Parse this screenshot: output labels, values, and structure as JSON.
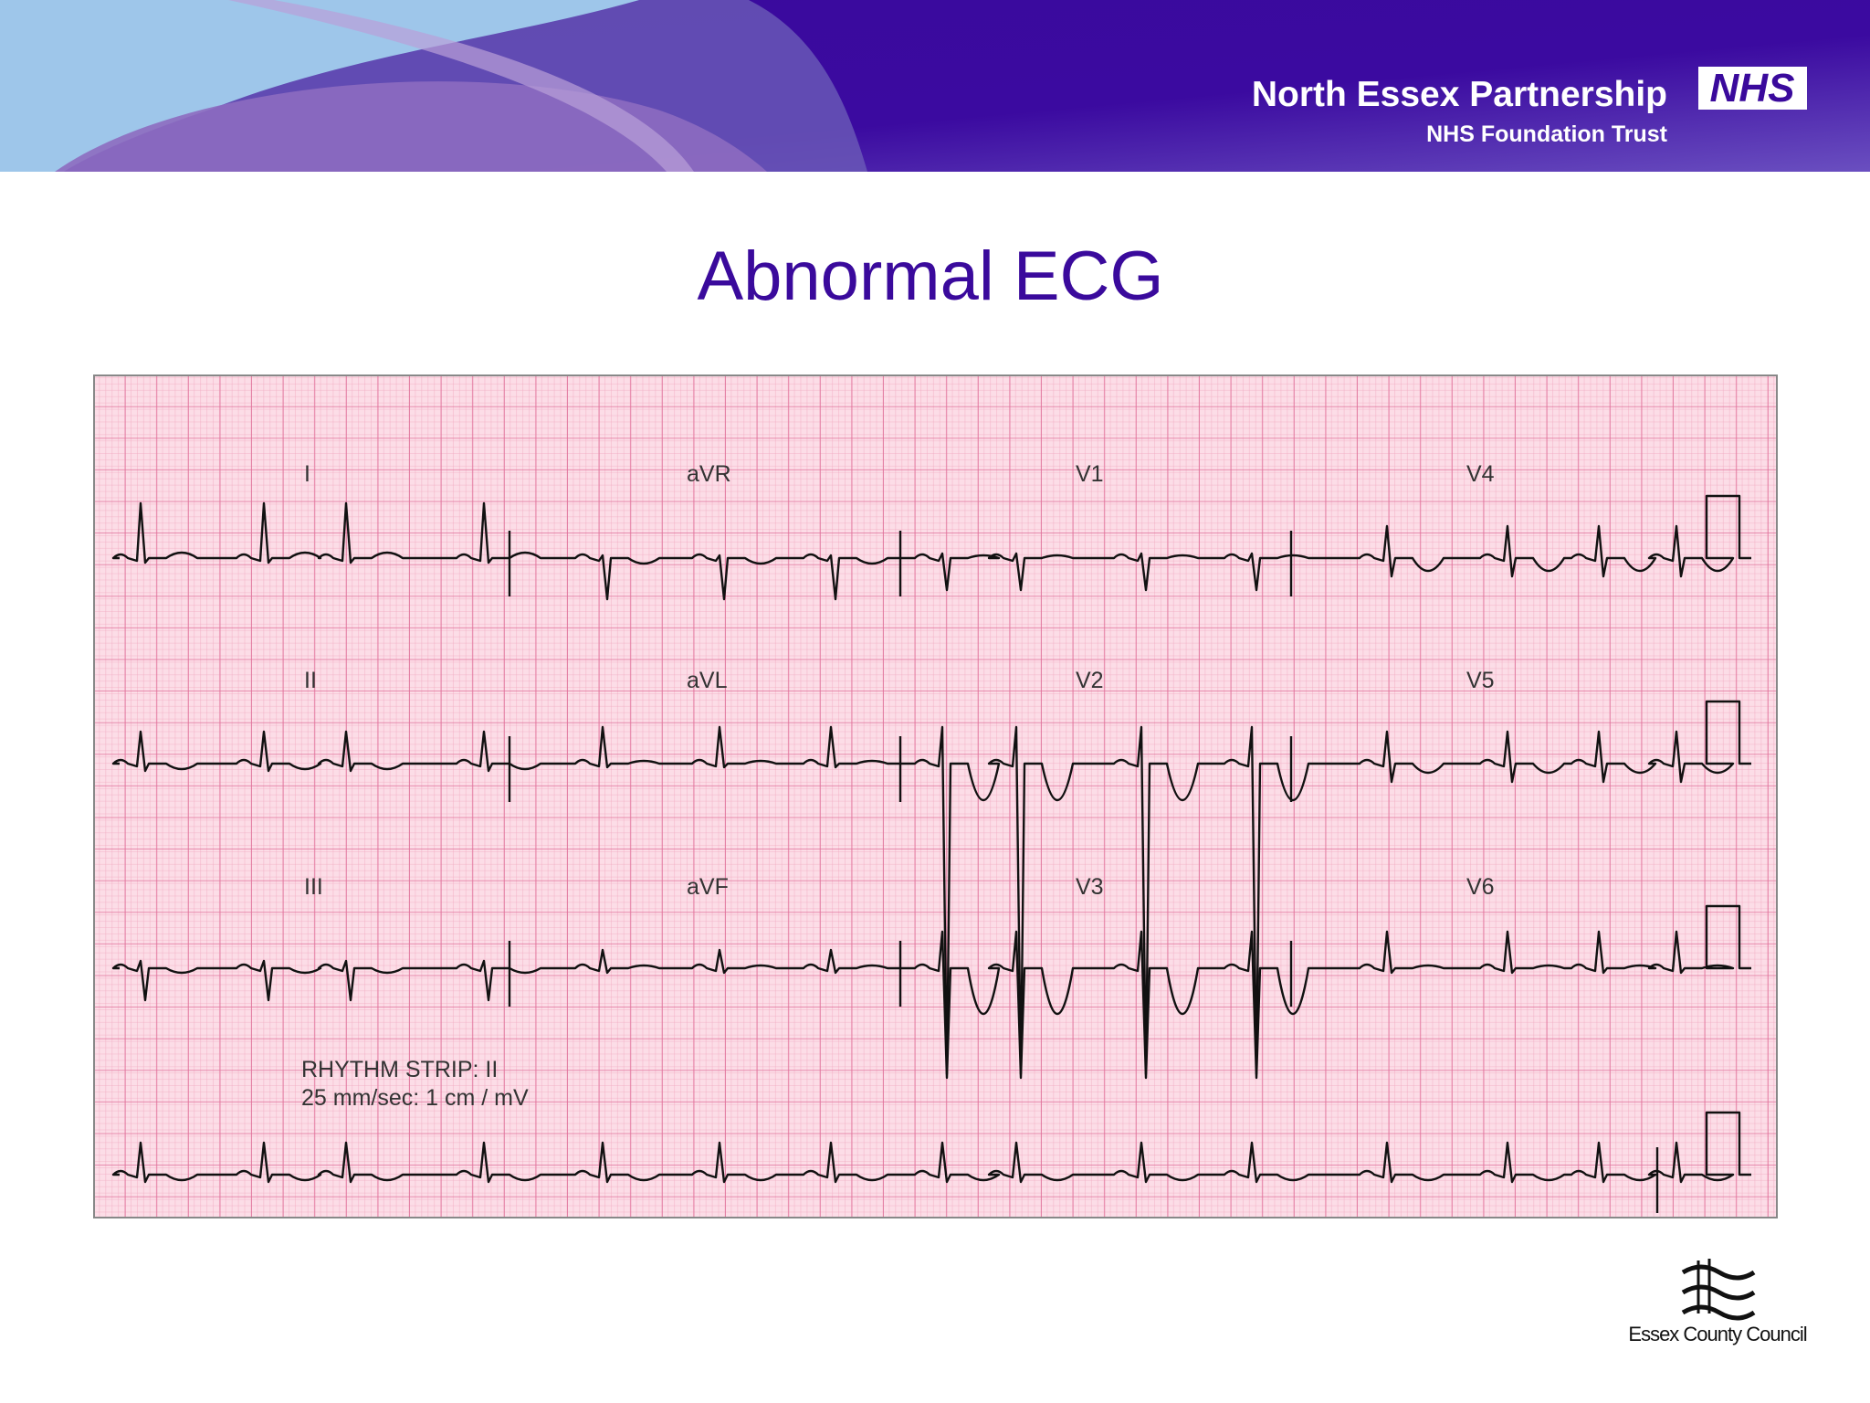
{
  "header": {
    "organization": "North Essex Partnership",
    "subtitle": "NHS Foundation Trust",
    "logo": "NHS"
  },
  "title": "Abnormal ECG",
  "ecg": {
    "leads": [
      "I",
      "aVR",
      "V1",
      "V4",
      "II",
      "aVL",
      "V2",
      "V5",
      "III",
      "aVF",
      "V3",
      "V6"
    ],
    "rhythm_strip": "RHYTHM STRIP: II",
    "calibration": "25 mm/sec: 1 cm / mV"
  },
  "footer": {
    "logo_text": "Essex County Council"
  }
}
